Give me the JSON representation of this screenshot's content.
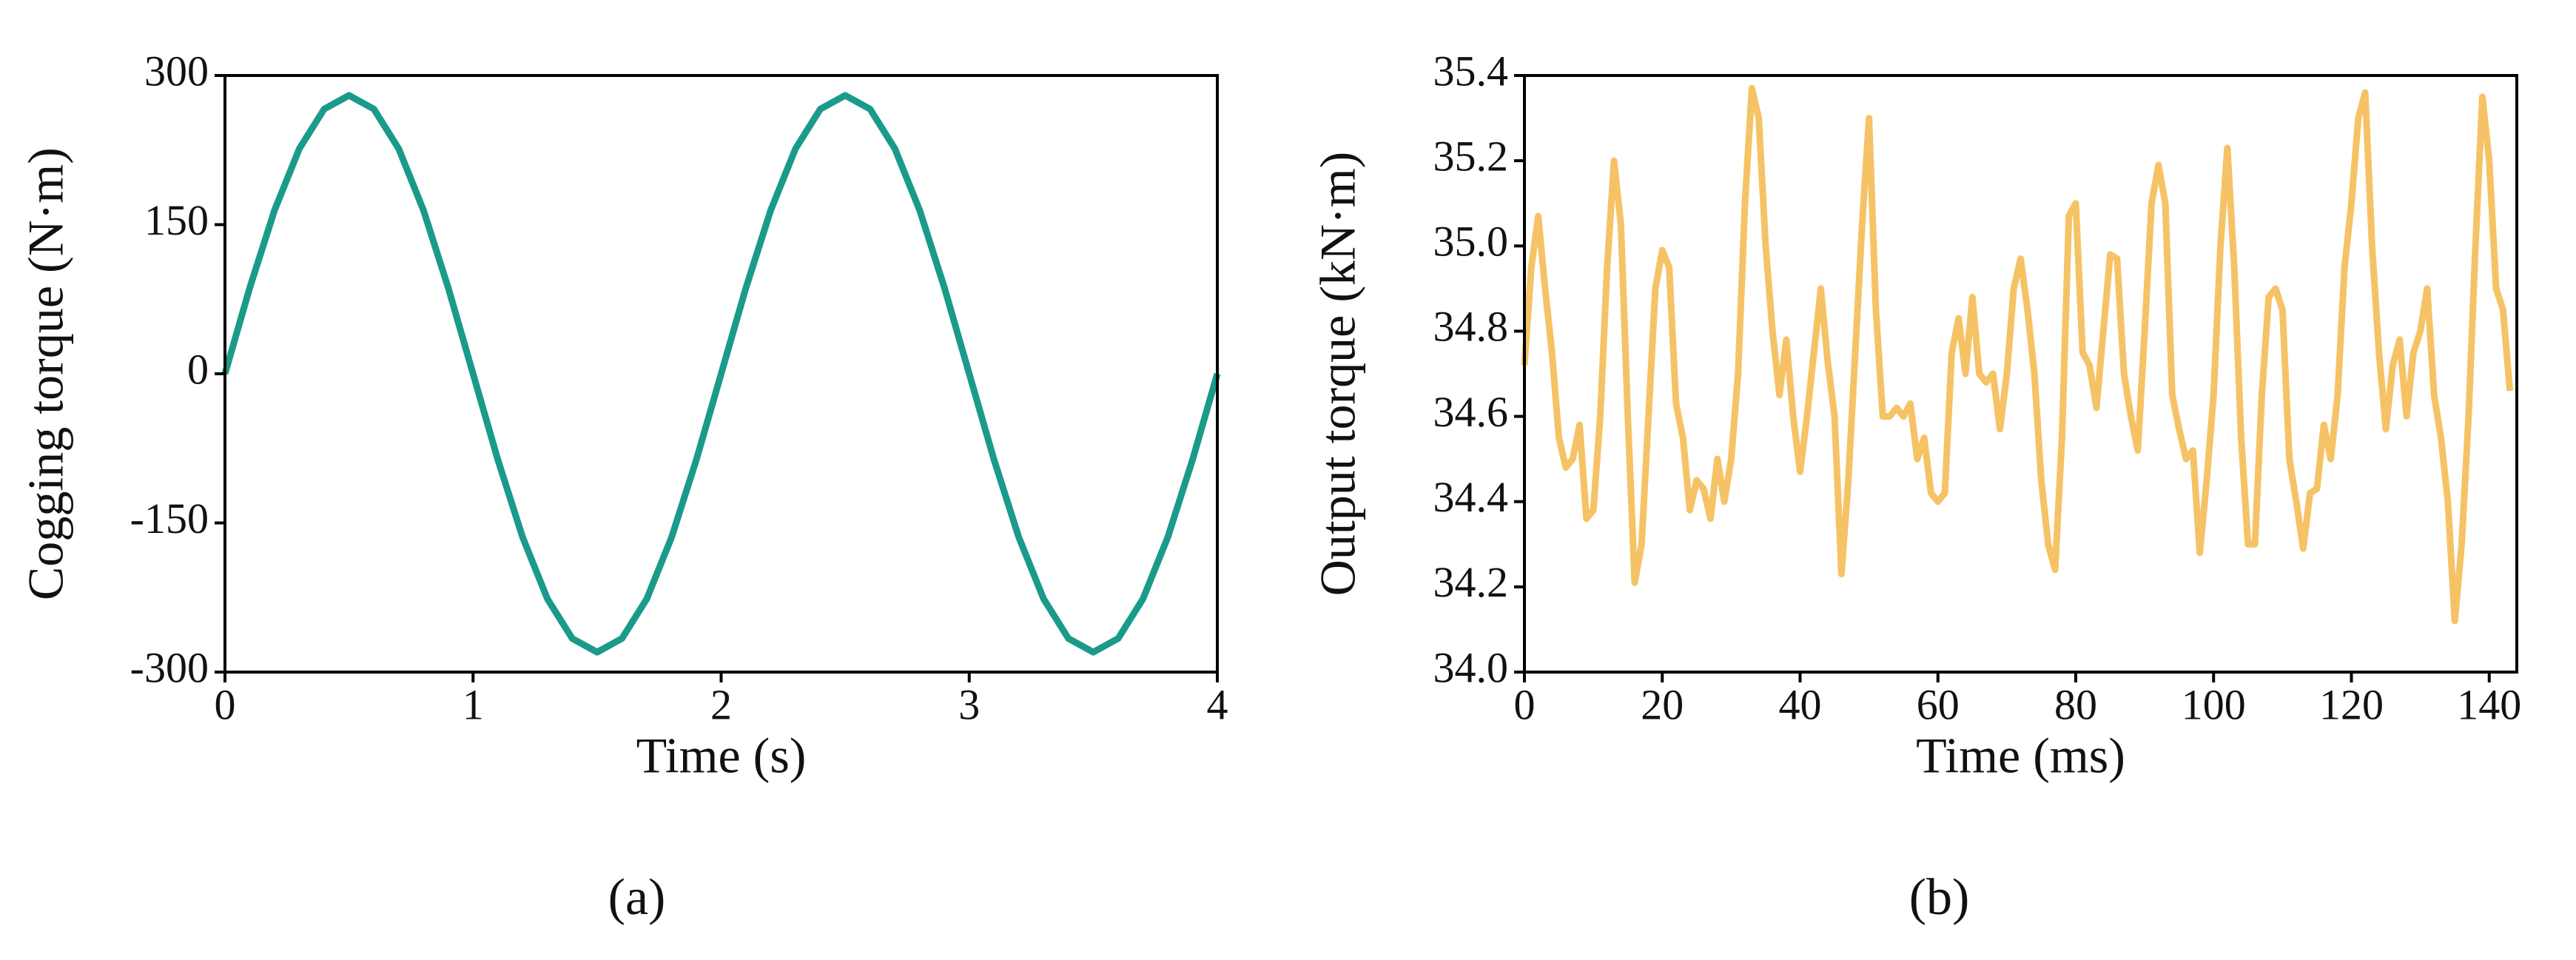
{
  "chart_data": [
    {
      "type": "line",
      "xlabel": "Time (s)",
      "ylabel": "Cogging torque (N·m)",
      "caption": "(a)",
      "xlim": [
        0,
        4
      ],
      "xticks": [
        0,
        1,
        2,
        3,
        4
      ],
      "ylim": [
        -300,
        300
      ],
      "yticks": [
        -300,
        -150,
        0,
        150,
        300
      ],
      "series": [
        {
          "color": "#1a9b8a",
          "x": [
            0,
            0.1,
            0.2,
            0.3,
            0.4,
            0.5,
            0.6,
            0.7,
            0.8,
            0.9,
            1,
            1.1,
            1.2,
            1.3,
            1.4,
            1.5,
            1.6,
            1.7,
            1.8,
            1.9,
            2,
            2.1,
            2.2,
            2.3,
            2.4,
            2.5,
            2.6,
            2.7,
            2.8,
            2.9,
            3,
            3.1,
            3.2,
            3.3,
            3.4,
            3.5,
            3.6,
            3.7,
            3.8,
            3.9,
            4
          ],
          "values": [
            0,
            86.5,
            164.6,
            226.5,
            266.3,
            280,
            266.3,
            226.5,
            164.6,
            86.5,
            0,
            -86.5,
            -164.6,
            -226.5,
            -266.3,
            -280,
            -266.3,
            -226.5,
            -164.6,
            -86.5,
            0,
            86.5,
            164.6,
            226.5,
            266.3,
            280,
            266.3,
            226.5,
            164.6,
            86.5,
            0,
            -86.5,
            -164.6,
            -226.5,
            -266.3,
            -280,
            -266.3,
            -226.5,
            -164.6,
            -86.5,
            0
          ]
        }
      ]
    },
    {
      "type": "line",
      "xlabel": "Time (ms)",
      "ylabel": "Output torque (kN·m)",
      "caption": "(b)",
      "xlim": [
        0,
        144
      ],
      "xticks": [
        0,
        20,
        40,
        60,
        80,
        100,
        120,
        140
      ],
      "ylim": [
        34,
        35.4
      ],
      "yticks": [
        {
          "value": 34,
          "label": "34.0"
        },
        34.2,
        34.4,
        34.6,
        34.8,
        {
          "value": 35,
          "label": "35.0"
        },
        35.2,
        35.4
      ],
      "series": [
        {
          "color": "#f5c366",
          "x": [
            0,
            1,
            2,
            3,
            4,
            5,
            6,
            7,
            8,
            9,
            10,
            11,
            12,
            13,
            14,
            15,
            16,
            17,
            18,
            19,
            20,
            21,
            22,
            23,
            24,
            25,
            26,
            27,
            28,
            29,
            30,
            31,
            32,
            33,
            34,
            35,
            36,
            37,
            38,
            39,
            40,
            41,
            42,
            43,
            44,
            45,
            46,
            47,
            48,
            49,
            50,
            51,
            52,
            53,
            54,
            55,
            56,
            57,
            58,
            59,
            60,
            61,
            62,
            63,
            64,
            65,
            66,
            67,
            68,
            69,
            70,
            71,
            72,
            73,
            74,
            75,
            76,
            77,
            78,
            79,
            80,
            81,
            82,
            83,
            84,
            85,
            86,
            87,
            88,
            89,
            90,
            91,
            92,
            93,
            94,
            95,
            96,
            97,
            98,
            99,
            100,
            101,
            102,
            103,
            104,
            105,
            106,
            107,
            108,
            109,
            110,
            111,
            112,
            113,
            114,
            115,
            116,
            117,
            118,
            119,
            120,
            121,
            122,
            123,
            124,
            125,
            126,
            127,
            128,
            129,
            130,
            131,
            132,
            133,
            134,
            135,
            136,
            137,
            138,
            139,
            140,
            141,
            142,
            143
          ],
          "values": [
            34.72,
            34.95,
            35.07,
            34.9,
            34.75,
            34.55,
            34.48,
            34.5,
            34.58,
            34.36,
            34.38,
            34.6,
            34.95,
            35.2,
            35.05,
            34.6,
            34.21,
            34.3,
            34.6,
            34.9,
            34.99,
            34.95,
            34.63,
            34.55,
            34.38,
            34.45,
            34.43,
            34.36,
            34.5,
            34.4,
            34.5,
            34.7,
            35.1,
            35.37,
            35.3,
            35.0,
            34.8,
            34.65,
            34.78,
            34.6,
            34.47,
            34.6,
            34.75,
            34.9,
            34.73,
            34.6,
            34.23,
            34.45,
            34.75,
            35.05,
            35.3,
            34.85,
            34.6,
            34.6,
            34.62,
            34.6,
            34.63,
            34.5,
            34.55,
            34.42,
            34.4,
            34.42,
            34.75,
            34.83,
            34.7,
            34.88,
            34.7,
            34.68,
            34.7,
            34.57,
            34.7,
            34.9,
            34.97,
            34.85,
            34.7,
            34.45,
            34.3,
            34.24,
            34.55,
            35.07,
            35.1,
            34.75,
            34.72,
            34.62,
            34.8,
            34.98,
            34.97,
            34.7,
            34.6,
            34.52,
            34.8,
            35.1,
            35.19,
            35.1,
            34.65,
            34.57,
            34.5,
            34.52,
            34.28,
            34.45,
            34.65,
            35.0,
            35.23,
            34.95,
            34.55,
            34.3,
            34.3,
            34.65,
            34.88,
            34.9,
            34.85,
            34.5,
            34.4,
            34.29,
            34.42,
            34.43,
            34.58,
            34.5,
            34.65,
            34.95,
            35.1,
            35.3,
            35.36,
            35.0,
            34.75,
            34.57,
            34.72,
            34.78,
            34.6,
            34.75,
            34.8,
            34.9,
            34.65,
            34.55,
            34.4,
            34.12,
            34.3,
            34.6,
            35.0,
            35.35,
            35.2,
            34.9,
            34.85,
            34.66
          ]
        }
      ]
    }
  ]
}
